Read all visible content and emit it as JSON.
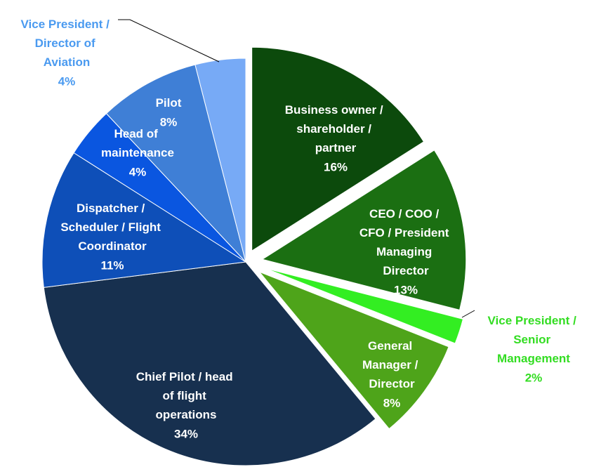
{
  "chart_data": {
    "type": "pie",
    "categories": [
      "Business owner / shareholder / partner",
      "CEO / COO / CFO / President Managing Director",
      "Vice President / Senior Management",
      "General Manager / Director",
      "Chief Pilot / head of flight operations",
      "Dispatcher / Scheduler / Flight Coordinator",
      "Head of maintenance",
      "Pilot",
      "Vice President / Director of Aviation"
    ],
    "values": [
      16,
      13,
      2,
      8,
      34,
      11,
      4,
      8,
      4
    ],
    "value_labels": [
      "16%",
      "13%",
      "2%",
      "8%",
      "34%",
      "11%",
      "4%",
      "8%",
      "4%"
    ],
    "colors": [
      "#0c4a0c",
      "#1b6f12",
      "#33ee22",
      "#4ea41a",
      "#17304f",
      "#0e4fb8",
      "#0a56e0",
      "#3f7fd6",
      "#77aaf6"
    ]
  }
}
